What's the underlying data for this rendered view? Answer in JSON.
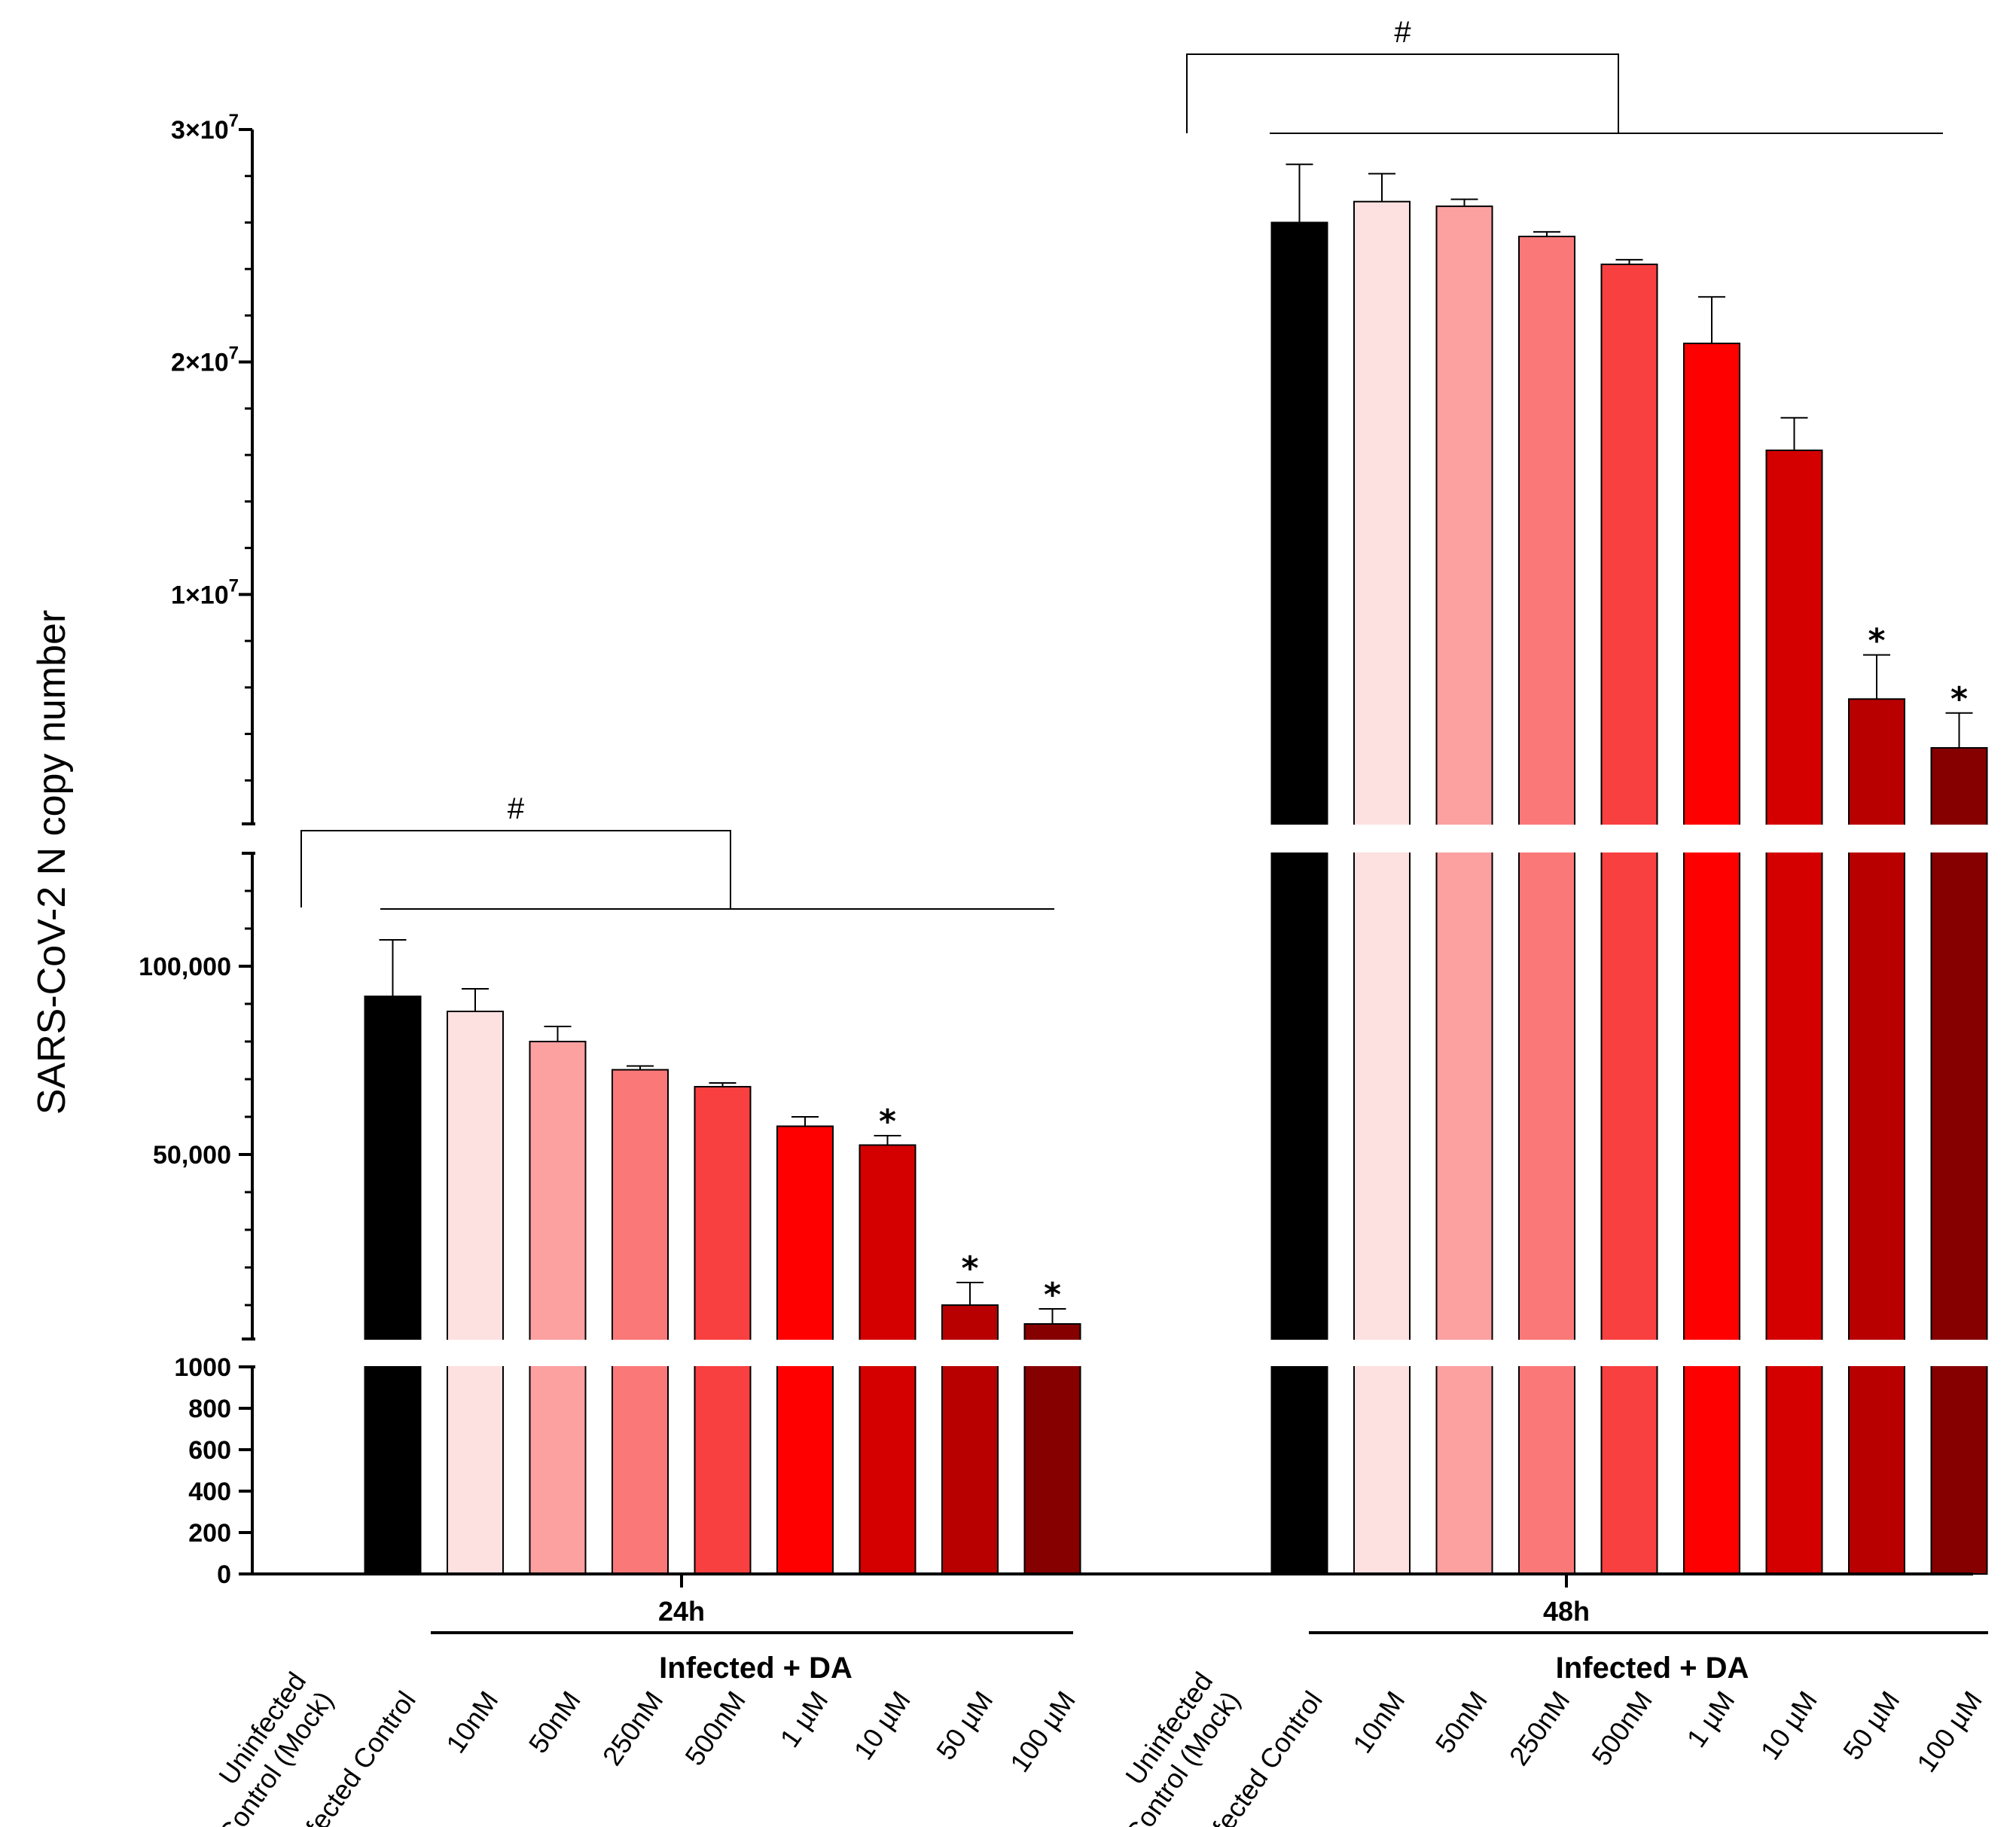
{
  "chart_data": {
    "type": "bar",
    "ylabel": "SARS-CoV-2 N copy number",
    "y_axis_segments": [
      {
        "range": [
          0,
          1000
        ],
        "ticks": [
          0,
          200,
          400,
          600,
          800,
          1000
        ],
        "tick_labels": [
          "0",
          "200",
          "400",
          "600",
          "800",
          "1000"
        ]
      },
      {
        "range": [
          1000,
          130000
        ],
        "ticks": [
          50000,
          100000
        ],
        "tick_labels": [
          "50,000",
          "100,000"
        ]
      },
      {
        "range": [
          130000,
          30000000
        ],
        "ticks": [
          10000000,
          20000000,
          30000000
        ],
        "tick_labels": [
          "1×10",
          "2×10",
          "3×10"
        ],
        "tick_exponent": "7"
      }
    ],
    "groups": [
      {
        "label": "24h",
        "subgroup_label": "Infected + DA",
        "significance_marker": "#",
        "categories": [
          "Uninfected Control (Mock)",
          "Infected Control",
          "10nM",
          "50nM",
          "250nM",
          "500nM",
          "1 µM",
          "10 µM",
          "50 µM",
          "100 µM"
        ],
        "category_lines": [
          [
            "Uninfected",
            "Control (Mock)"
          ],
          [
            "Infected Control"
          ],
          [
            "10nM"
          ],
          [
            "50nM"
          ],
          [
            "250nM"
          ],
          [
            "500nM"
          ],
          [
            "1 µM"
          ],
          [
            "10 µM"
          ],
          [
            "50 µM"
          ],
          [
            "100 µM"
          ]
        ],
        "values": [
          0,
          92000,
          88000,
          80000,
          72500,
          68000,
          57500,
          52500,
          10000,
          5000
        ],
        "errors": [
          0,
          15000,
          6000,
          4000,
          1000,
          1000,
          2500,
          2500,
          6000,
          4000
        ],
        "significant": [
          false,
          false,
          false,
          false,
          false,
          false,
          false,
          true,
          true,
          true
        ]
      },
      {
        "label": "48h",
        "subgroup_label": "Infected + DA",
        "significance_marker": "#",
        "categories": [
          "Uninfected Control (Mock)",
          "Infected Control",
          "10nM",
          "50nM",
          "250nM",
          "500nM",
          "1 µM",
          "10 µM",
          "50 µM",
          "100 µM"
        ],
        "category_lines": [
          [
            "Uninfected",
            "Control (Mock)"
          ],
          [
            "Infected Control"
          ],
          [
            "10nM"
          ],
          [
            "50nM"
          ],
          [
            "250nM"
          ],
          [
            "500nM"
          ],
          [
            "1 µM"
          ],
          [
            "10 µM"
          ],
          [
            "50 µM"
          ],
          [
            "100 µM"
          ]
        ],
        "values": [
          2,
          26000000,
          26900000,
          26700000,
          25400000,
          24200000,
          20800000,
          16200000,
          5500000,
          3400000
        ],
        "errors": [
          0,
          2500000,
          1200000,
          300000,
          200000,
          200000,
          2000000,
          1400000,
          1900000,
          1500000
        ],
        "significant": [
          false,
          false,
          false,
          false,
          false,
          false,
          false,
          false,
          true,
          true
        ]
      }
    ],
    "significance_symbol": "*",
    "colors": [
      "#ffffff",
      "#000000",
      "#fde0e0",
      "#fca0a0",
      "#fb7878",
      "#f84040",
      "#ff0000",
      "#d40000",
      "#b80000",
      "#870000"
    ]
  }
}
